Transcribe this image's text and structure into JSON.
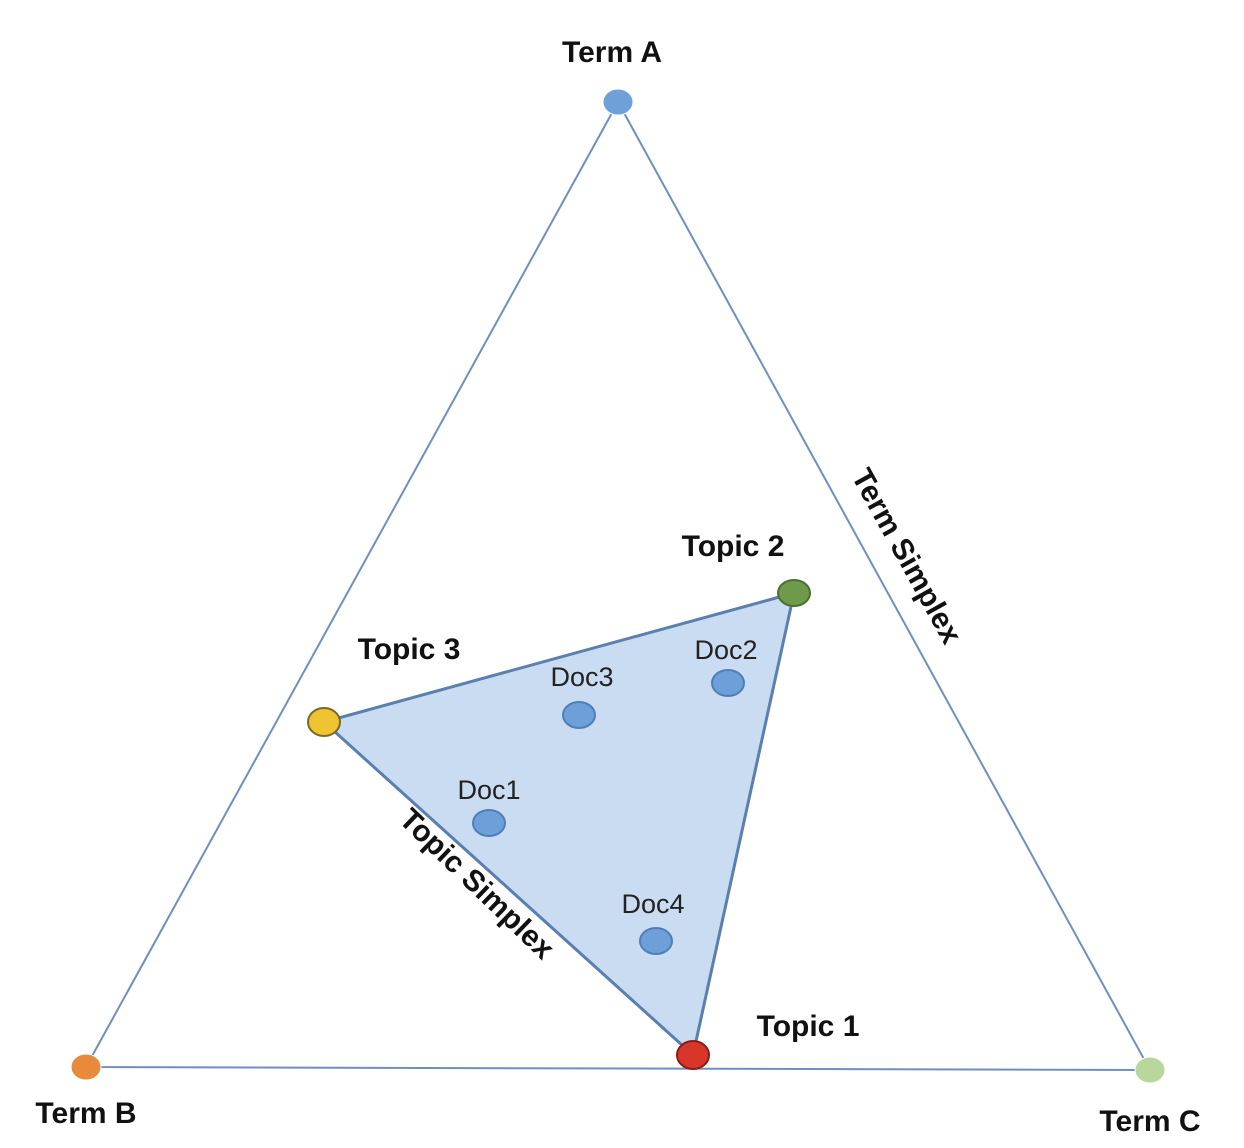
{
  "terms": {
    "a": {
      "label": "Term A",
      "color": "#6fa0d8"
    },
    "b": {
      "label": "Term B",
      "color": "#e88a3c"
    },
    "c": {
      "label": "Term C",
      "color": "#b9d79c"
    }
  },
  "topics": {
    "t1": {
      "label": "Topic 1",
      "color": "#d9362a"
    },
    "t2": {
      "label": "Topic 2",
      "color": "#6e9a4a"
    },
    "t3": {
      "label": "Topic 3",
      "color": "#f0c330"
    }
  },
  "docs": {
    "d1": {
      "label": "Doc1"
    },
    "d2": {
      "label": "Doc2"
    },
    "d3": {
      "label": "Doc3"
    },
    "d4": {
      "label": "Doc4"
    }
  },
  "doc_color": "#6f9fd8",
  "term_simplex_label": "Term Simplex",
  "topic_simplex_label": "Topic Simplex",
  "colors": {
    "term_simplex_line": "#6f8fbd",
    "topic_simplex_fill": "#c9dcf2",
    "topic_simplex_line": "#5b7fae"
  }
}
